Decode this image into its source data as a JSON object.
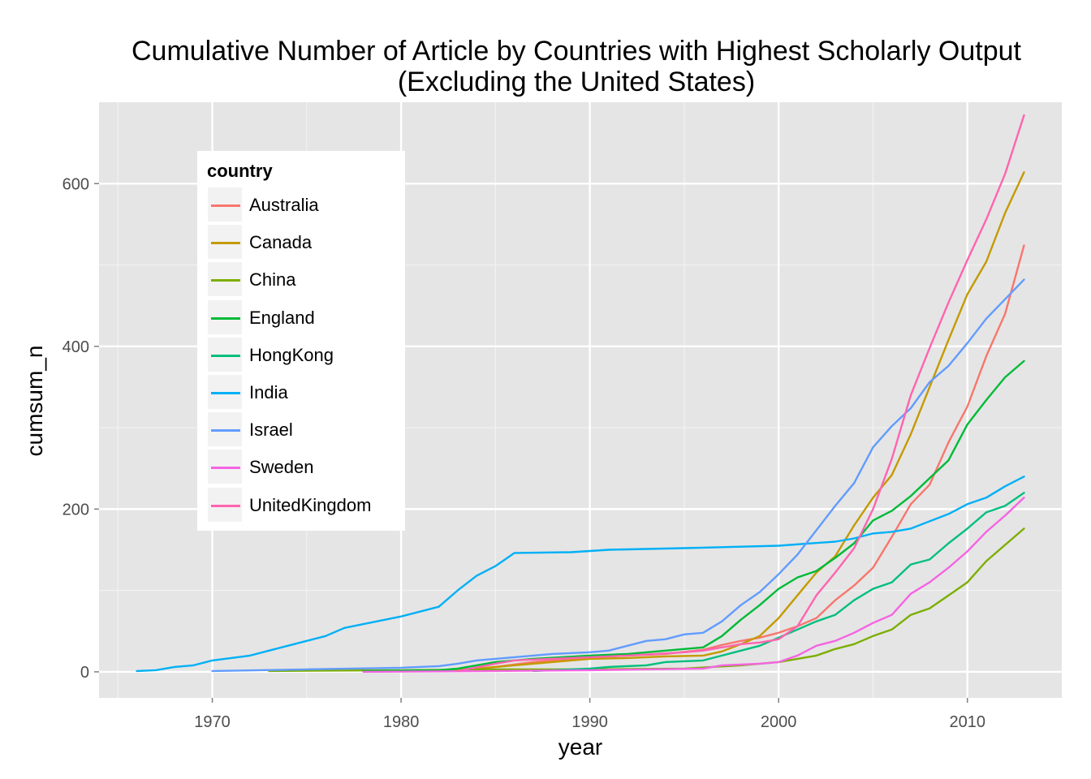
{
  "chart_data": {
    "type": "line",
    "title": "Cumulative Number of Article by Countries with Highest Scholarly Output",
    "subtitle": "(Excluding the United States)",
    "xlabel": "year",
    "ylabel": "cumsum_n",
    "xlim": [
      1964,
      2015
    ],
    "ylim": [
      -32,
      700
    ],
    "xticks": [
      1970,
      1980,
      1990,
      2000,
      2010
    ],
    "yticks": [
      0,
      200,
      400,
      600
    ],
    "grid": true,
    "legend": {
      "title": "country",
      "placement": "top-left"
    },
    "series": [
      {
        "name": "Australia",
        "color": "#F8766D",
        "x": [
          1983,
          1985,
          1987,
          1990,
          1992,
          1994,
          1996,
          1997,
          1998,
          1999,
          2000,
          2001,
          2002,
          2003,
          2004,
          2005,
          2006,
          2007,
          2008,
          2009,
          2010,
          2011,
          2012,
          2013
        ],
        "y": [
          1,
          6,
          12,
          18,
          20,
          22,
          27,
          33,
          38,
          42,
          48,
          56,
          66,
          88,
          106,
          128,
          166,
          206,
          230,
          282,
          326,
          388,
          440,
          524
        ]
      },
      {
        "name": "Canada",
        "color": "#C49A00",
        "x": [
          1979,
          1982,
          1984,
          1986,
          1988,
          1990,
          1992,
          1994,
          1996,
          1997,
          1998,
          1999,
          2000,
          2001,
          2002,
          2003,
          2004,
          2005,
          2006,
          2007,
          2008,
          2009,
          2010,
          2011,
          2012,
          2013
        ],
        "y": [
          1,
          2,
          4,
          8,
          12,
          16,
          17,
          19,
          20,
          25,
          34,
          44,
          66,
          94,
          122,
          142,
          180,
          214,
          242,
          292,
          350,
          408,
          464,
          504,
          564,
          614
        ]
      },
      {
        "name": "China",
        "color": "#7CAE00",
        "x": [
          1973,
          1980,
          1985,
          1990,
          1995,
          1998,
          2000,
          2001,
          2002,
          2003,
          2004,
          2005,
          2006,
          2007,
          2008,
          2009,
          2010,
          2011,
          2012,
          2013
        ],
        "y": [
          1,
          2,
          3,
          3,
          4,
          8,
          12,
          16,
          20,
          28,
          34,
          44,
          52,
          70,
          78,
          94,
          110,
          136,
          156,
          176
        ]
      },
      {
        "name": "England",
        "color": "#00BA38",
        "x": [
          1978,
          1982,
          1983,
          1984,
          1985,
          1987,
          1990,
          1992,
          1994,
          1996,
          1997,
          1998,
          1999,
          2000,
          2001,
          2002,
          2003,
          2004,
          2005,
          2006,
          2007,
          2008,
          2009,
          2010,
          2011,
          2012,
          2013
        ],
        "y": [
          1,
          2,
          4,
          8,
          12,
          16,
          20,
          22,
          26,
          30,
          44,
          64,
          82,
          102,
          116,
          124,
          140,
          158,
          186,
          198,
          216,
          238,
          260,
          304,
          334,
          362,
          382
        ]
      },
      {
        "name": "HongKong",
        "color": "#00BF7D",
        "x": [
          1987,
          1990,
          1991,
          1993,
          1994,
          1996,
          1997,
          1998,
          1999,
          2000,
          2001,
          2002,
          2003,
          2004,
          2005,
          2006,
          2007,
          2008,
          2009,
          2010,
          2011,
          2012,
          2013
        ],
        "y": [
          1,
          4,
          6,
          8,
          12,
          14,
          20,
          26,
          32,
          42,
          52,
          62,
          70,
          88,
          102,
          110,
          132,
          138,
          158,
          176,
          196,
          204,
          220
        ]
      },
      {
        "name": "India",
        "color": "#00B0F6",
        "x": [
          1966,
          1967,
          1968,
          1969,
          1970,
          1972,
          1973,
          1975,
          1976,
          1977,
          1980,
          1982,
          1983,
          1984,
          1985,
          1986,
          1989,
          1991,
          1995,
          2000,
          2003,
          2004,
          2005,
          2006,
          2007,
          2008,
          2009,
          2010,
          2011,
          2012,
          2013
        ],
        "y": [
          1,
          2,
          6,
          8,
          14,
          20,
          26,
          38,
          44,
          54,
          68,
          80,
          100,
          118,
          130,
          146,
          147,
          150,
          152,
          155,
          160,
          164,
          170,
          172,
          176,
          185,
          194,
          206,
          214,
          228,
          240
        ]
      },
      {
        "name": "Israel",
        "color": "#619CFF",
        "x": [
          1970,
          1975,
          1980,
          1982,
          1983,
          1984,
          1986,
          1987,
          1988,
          1990,
          1991,
          1992,
          1993,
          1994,
          1995,
          1996,
          1997,
          1998,
          1999,
          2000,
          2001,
          2002,
          2003,
          2004,
          2005,
          2006,
          2007,
          2008,
          2009,
          2010,
          2011,
          2012,
          2013
        ],
        "y": [
          1,
          3,
          5,
          7,
          10,
          14,
          18,
          20,
          22,
          24,
          26,
          32,
          38,
          40,
          46,
          48,
          62,
          82,
          98,
          120,
          144,
          174,
          204,
          232,
          276,
          302,
          324,
          356,
          376,
          404,
          434,
          458,
          482
        ]
      },
      {
        "name": "Sweden",
        "color": "#F564E3",
        "x": [
          1978,
          1985,
          1990,
          1996,
          1997,
          1999,
          2000,
          2001,
          2002,
          2003,
          2004,
          2005,
          2006,
          2007,
          2008,
          2009,
          2010,
          2011,
          2012,
          2013
        ],
        "y": [
          0,
          1,
          2,
          4,
          8,
          10,
          12,
          20,
          32,
          38,
          48,
          60,
          70,
          96,
          110,
          128,
          148,
          172,
          192,
          214
        ]
      },
      {
        "name": "UnitedKingdom",
        "color": "#FF64B0",
        "x": [
          1983,
          1985,
          1986,
          1990,
          1992,
          1995,
          1996,
          1997,
          1998,
          1999,
          2000,
          2001,
          2002,
          2003,
          2004,
          2005,
          2006,
          2007,
          2008,
          2009,
          2010,
          2011,
          2012,
          2013
        ],
        "y": [
          1,
          10,
          14,
          18,
          20,
          24,
          26,
          30,
          34,
          36,
          40,
          56,
          94,
          122,
          152,
          200,
          262,
          340,
          398,
          454,
          506,
          556,
          612,
          684
        ]
      }
    ]
  }
}
